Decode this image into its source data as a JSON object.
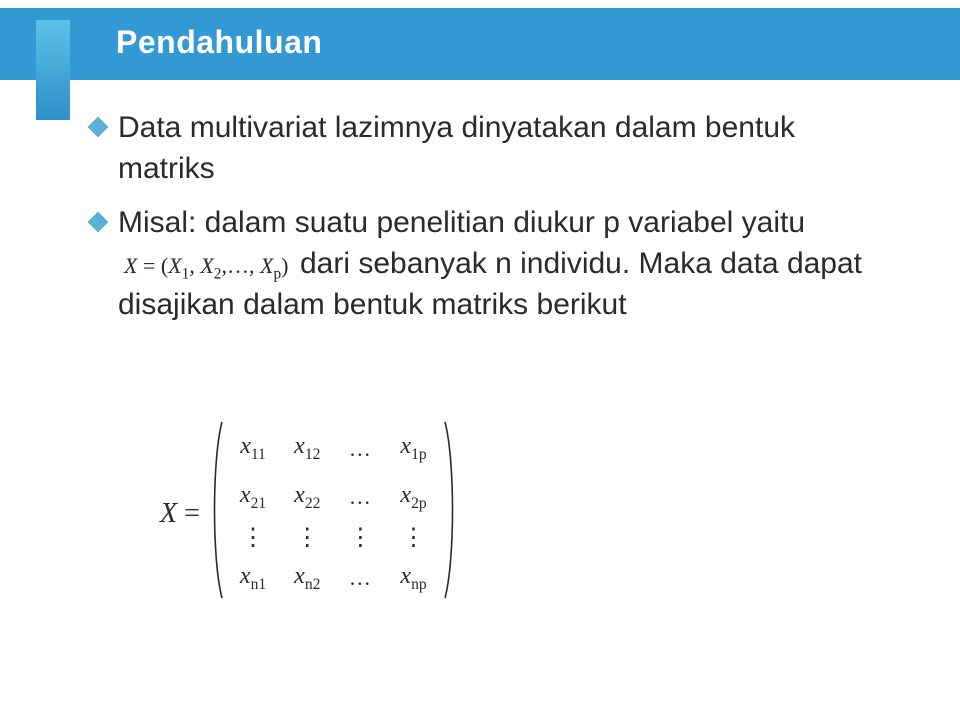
{
  "slide": {
    "title": "Pendahuluan",
    "bullet_color": "#4a9fd0",
    "header_bar_color": "#3399d4",
    "bullets": [
      {
        "text": "Data multivariat lazimnya dinyatakan dalam bentuk matriks"
      },
      {
        "text_before": "Misal: dalam suatu penelitian diukur p variabel yaitu ",
        "inline_formula_parts": {
          "lhs": "X",
          "eq": " = (",
          "x1": "X",
          "s1": "1",
          "c1": ", ",
          "x2": "X",
          "s2": "2",
          "c2": ",…, ",
          "xp": "X",
          "sp": "p",
          "close": ")"
        },
        "text_after": " dari sebanyak n individu. Maka data dapat disajikan dalam bentuk matriks berikut"
      }
    ],
    "matrix": {
      "lhs": "X",
      "eq": " = ",
      "rows": 4,
      "cols": 4,
      "cells": [
        {
          "type": "x",
          "sub": "11"
        },
        {
          "type": "x",
          "sub": "12"
        },
        {
          "type": "hdots"
        },
        {
          "type": "x",
          "sub": "1p"
        },
        {
          "type": "x",
          "sub": "21"
        },
        {
          "type": "x",
          "sub": "22"
        },
        {
          "type": "hdots"
        },
        {
          "type": "x",
          "sub": "2p"
        },
        {
          "type": "vdots"
        },
        {
          "type": "vdots"
        },
        {
          "type": "vdots"
        },
        {
          "type": "vdots"
        },
        {
          "type": "x",
          "sub": "n1"
        },
        {
          "type": "x",
          "sub": "n2"
        },
        {
          "type": "hdots"
        },
        {
          "type": "x",
          "sub": "np"
        }
      ]
    }
  }
}
